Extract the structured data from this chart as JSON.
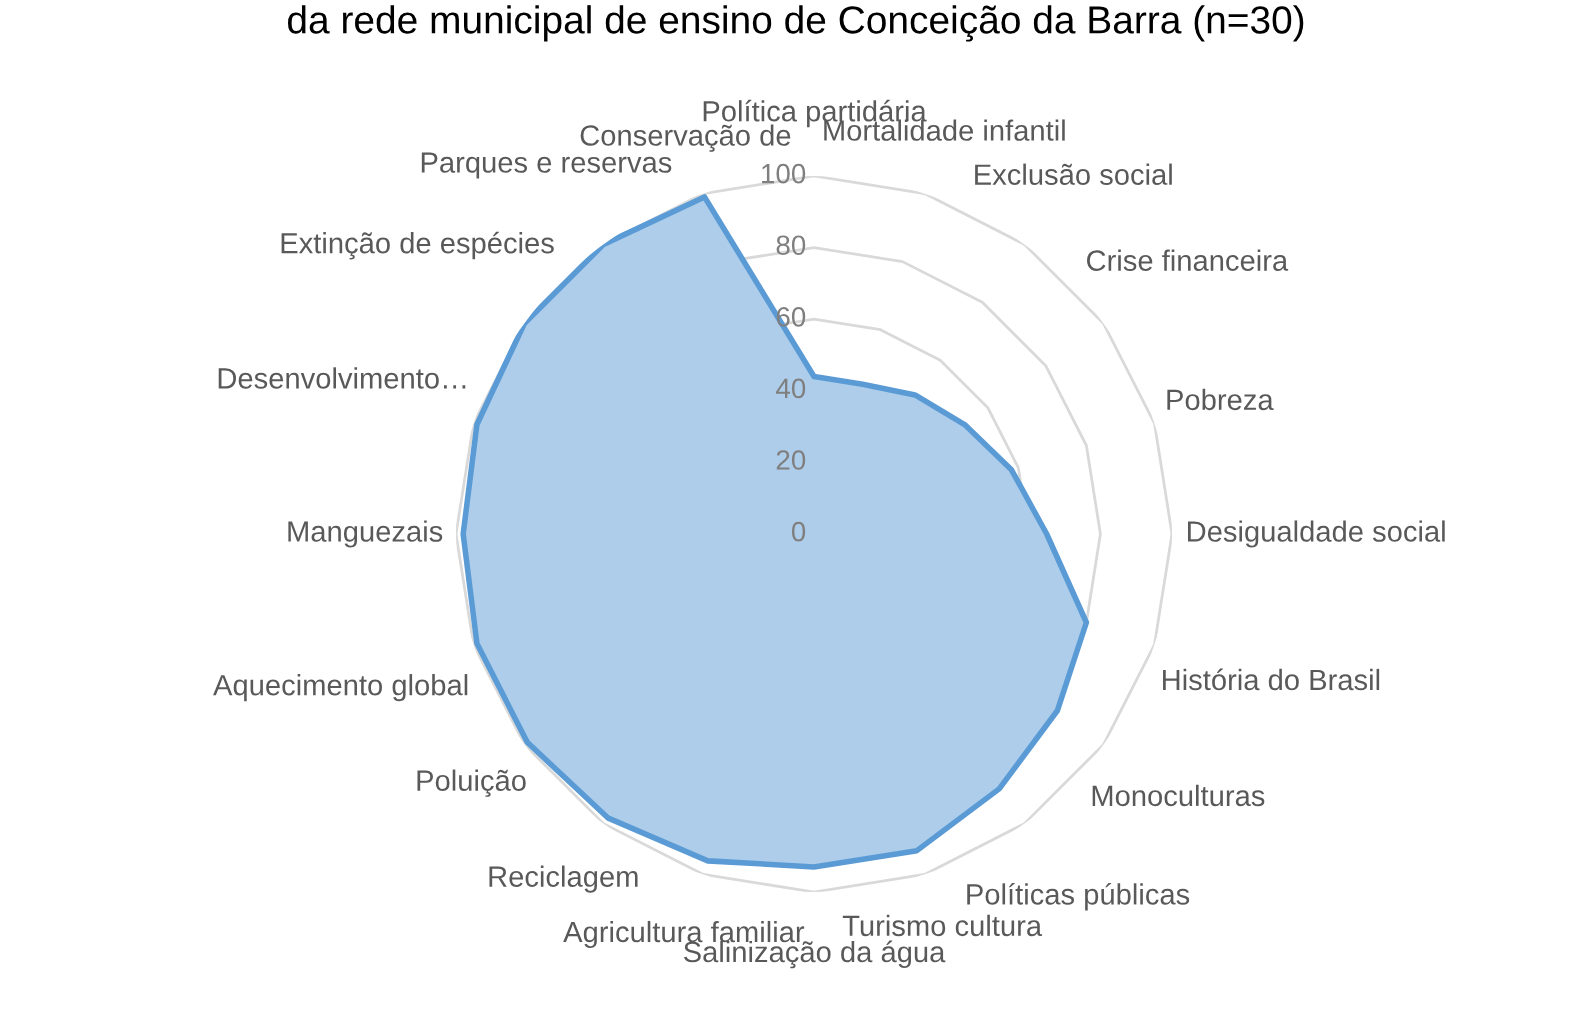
{
  "chart_data": {
    "type": "radar",
    "title": "da rede municipal de ensino de Conceição da Barra (n=30)",
    "categories": [
      "Política partidária",
      "Mortalidade infantil",
      "Exclusão social",
      "Crise financeira",
      "Pobreza",
      "Desigualdade social",
      "História do Brasil",
      "Monoculturas",
      "Políticas públicas",
      "Turismo cultura",
      "Salinização da água",
      "Agricultura familiar",
      "Reciclagem",
      "Poluição",
      "Aquecimento global",
      "Manguezais",
      "Desenvolvimento…",
      "Extinção de espécies",
      "Parques e reservas",
      "Conservação de"
    ],
    "series": [
      {
        "color": "#5b9bd5",
        "values": [
          44,
          44,
          48,
          52,
          58,
          65,
          80,
          84,
          88,
          93,
          93,
          96,
          98,
          99,
          99,
          98,
          99,
          100,
          100,
          99
        ]
      }
    ],
    "ylim": [
      0,
      100
    ],
    "yticks": [
      0,
      20,
      40,
      60,
      80,
      100
    ],
    "grid": true
  }
}
